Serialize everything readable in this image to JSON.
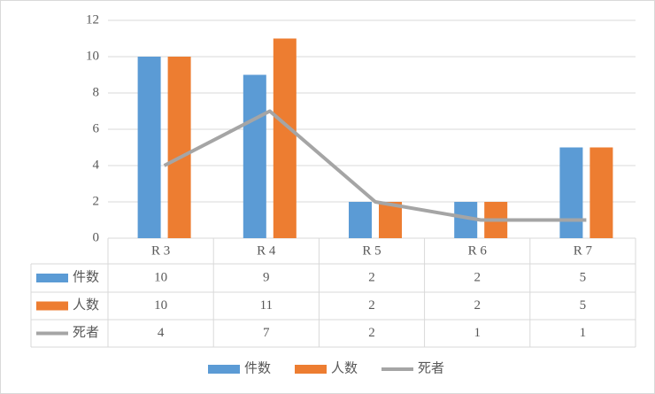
{
  "chart_data": {
    "type": "bar",
    "categories": [
      "R 3",
      "R 4",
      "R 5",
      "R 6",
      "R 7"
    ],
    "series": [
      {
        "name": "件数",
        "color": "#5b9bd5",
        "values": [
          10,
          9,
          2,
          2,
          5
        ]
      },
      {
        "name": "人数",
        "color": "#ed7d31",
        "values": [
          10,
          11,
          2,
          2,
          5
        ]
      },
      {
        "name": "死者",
        "color": "#a5a5a5",
        "type": "line",
        "values": [
          4,
          7,
          2,
          1,
          1
        ]
      }
    ],
    "ylim": [
      0,
      12
    ],
    "yticks": [
      0,
      2,
      4,
      6,
      8,
      10,
      12
    ],
    "grid": true
  }
}
